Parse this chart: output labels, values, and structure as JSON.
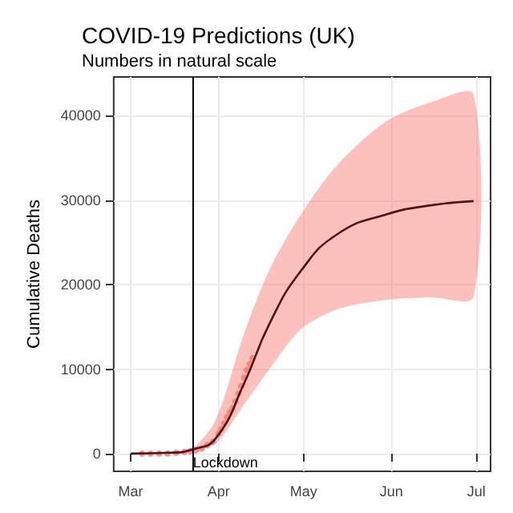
{
  "chart_data": {
    "type": "line",
    "title": "COVID-19 Predictions (UK)",
    "subtitle": "Numbers in natural scale",
    "ylabel": "Cumulative Deaths",
    "xlim": [
      "--02-24",
      "--07-06"
    ],
    "xticks": [
      {
        "value": "--03-01",
        "label": "Mar"
      },
      {
        "value": "--04-01",
        "label": "Apr"
      },
      {
        "value": "--05-01",
        "label": "May"
      },
      {
        "value": "--06-01",
        "label": "Jun"
      },
      {
        "value": "--07-01",
        "label": "Jul"
      }
    ],
    "ylim": [
      -2100,
      44600
    ],
    "yticks": [
      0,
      10000,
      20000,
      30000,
      40000
    ],
    "grid": true,
    "ref_lines": [
      {
        "axis": "x",
        "value": "--03-23",
        "label": "Lockdown",
        "color": "#000000"
      }
    ],
    "series": [
      {
        "color": "#4a1414",
        "marker": "none",
        "x": [
          "--03-01",
          "--03-15",
          "--03-23",
          "--03-31",
          "--04-10",
          "--04-19",
          "--04-30",
          "--05-13",
          "--05-30",
          "--06-15",
          "--06-30"
        ],
        "values": [
          0,
          100,
          500,
          1800,
          8300,
          15400,
          21600,
          26000,
          28300,
          29400,
          29900
        ],
        "lower": [
          0,
          50,
          300,
          1200,
          5800,
          10000,
          14700,
          17100,
          18200,
          18500,
          18600
        ],
        "upper": [
          0,
          150,
          700,
          4000,
          14200,
          21800,
          28300,
          34200,
          39300,
          41600,
          42500
        ]
      },
      {
        "type": "scatter",
        "color": "#f8766d",
        "marker": "circle",
        "x": [
          "--03-05",
          "--03-08",
          "--03-11",
          "--03-14",
          "--03-17",
          "--03-20",
          "--03-22",
          "--03-24",
          "--03-26",
          "--03-28",
          "--03-30",
          "--04-01",
          "--04-02",
          "--04-03",
          "--04-04",
          "--04-05",
          "--04-06",
          "--04-07",
          "--04-08",
          "--04-09",
          "--04-10",
          "--04-11",
          "--04-12",
          "--04-13"
        ],
        "values": [
          0,
          0,
          0,
          0,
          100,
          200,
          300,
          400,
          600,
          1000,
          1400,
          2400,
          2900,
          3600,
          4300,
          4900,
          5400,
          6200,
          7100,
          8000,
          9000,
          9900,
          10600,
          11300
        ]
      }
    ]
  }
}
